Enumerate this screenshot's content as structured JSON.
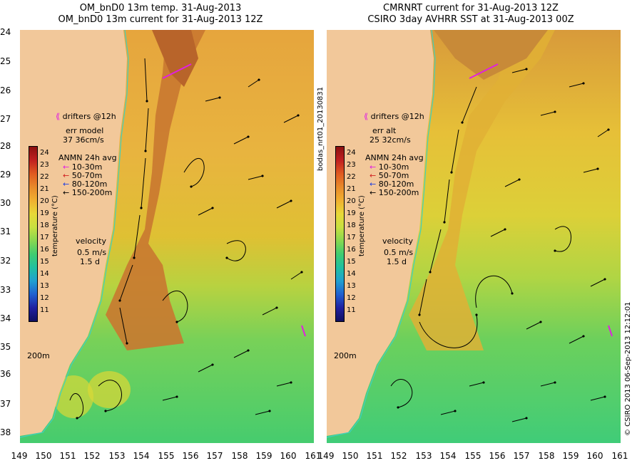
{
  "titles": {
    "left_line1": "OM_bnD0 13m temp. 31-Aug-2013",
    "left_line2": "OM_bnD0 13m current for 31-Aug-2013 12Z",
    "right_line1": "CMRNRT current for 31-Aug-2013 12Z",
    "right_line2": "CSIRO 3day AVHRR SST at 31-Aug-2013 00Z"
  },
  "axes": {
    "lat_ticks": [
      "24",
      "25",
      "26",
      "27",
      "28",
      "29",
      "30",
      "31",
      "32",
      "33",
      "34",
      "35",
      "36",
      "37",
      "38"
    ],
    "lon_ticks": [
      "149",
      "150",
      "151",
      "152",
      "153",
      "154",
      "155",
      "156",
      "157",
      "158",
      "159",
      "160",
      "161"
    ],
    "lon_ticks_right": [
      "149",
      "150",
      "151",
      "152",
      "153",
      "154",
      "155",
      "156",
      "157",
      "158",
      "159",
      "160",
      "161"
    ]
  },
  "left_panel": {
    "drifters": "drifters @12h",
    "err_title": "err model",
    "err_value": "37 36cm/s",
    "anmn_title": "ANMN 24h avg",
    "depth_bands": [
      "10-30m",
      "50-70m",
      "80-120m",
      "150-200m"
    ],
    "velocity_title": "velocity",
    "velocity_speed": "0.5 m/s",
    "velocity_time": "1.5 d",
    "isobath": "200m",
    "colorbar_label": "temperature (°C)"
  },
  "right_panel": {
    "drifters": "drifters @12h",
    "err_title": "err alt",
    "err_value": "25 32cm/s",
    "anmn_title": "ANMN 24h avg",
    "depth_bands": [
      "10-30m",
      "50-70m",
      "80-120m",
      "150-200m"
    ],
    "velocity_title": "velocity",
    "velocity_speed": "0.5 m/s",
    "velocity_time": "1.5 d",
    "isobath": "200m",
    "colorbar_label": "temperature (°C)"
  },
  "colorbar_ticks": [
    "24",
    "23",
    "22",
    "21",
    "20",
    "19",
    "18",
    "17",
    "16",
    "15",
    "14",
    "13",
    "12",
    "11"
  ],
  "colors": {
    "land": "#f2c89a",
    "coast_isobath": "#40d0c0",
    "drifter": "#e020e0",
    "band_10_30": "#e020e0",
    "band_50_70": "#d02020",
    "band_80_120": "#2040e0",
    "band_150_200": "#000000"
  },
  "side_labels": {
    "product_id": "bodas_nrt01_20130831",
    "copyright": "© CSIRO 2013   06-Sep-2013 12:12:01"
  }
}
